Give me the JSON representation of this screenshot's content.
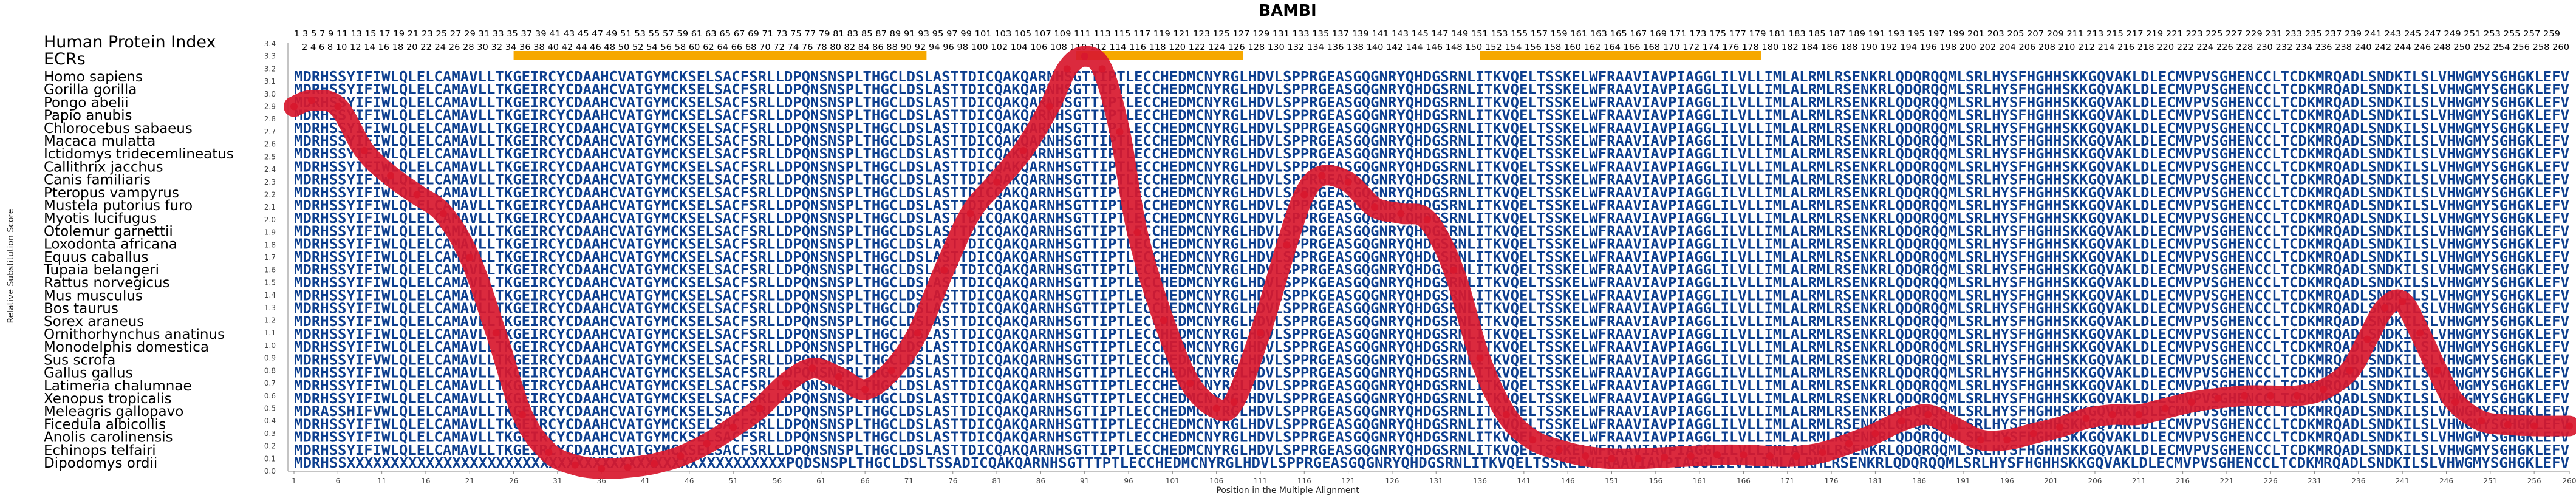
{
  "chart_data": {
    "type": "line",
    "title": "BAMBI",
    "ylabel": "Relative Substitution Score",
    "xlabel": "Position in the Multiple Alignment",
    "xlim": [
      1,
      260
    ],
    "ylim": [
      0,
      3.4
    ],
    "yticks": [
      "0.0",
      "0.1",
      "0.2",
      "0.3",
      "0.4",
      "0.5",
      "0.6",
      "0.7",
      "0.8",
      "0.9",
      "1.0",
      "1.1",
      "1.2",
      "1.3",
      "1.4",
      "1.5",
      "1.6",
      "1.7",
      "1.8",
      "1.9",
      "2.0",
      "2.1",
      "2.2",
      "2.3",
      "2.4",
      "2.5",
      "2.6",
      "2.7",
      "2.8",
      "2.9",
      "3.0",
      "3.1",
      "3.2",
      "3.3",
      "3.4"
    ],
    "xticks": [
      1,
      6,
      11,
      16,
      21,
      26,
      31,
      36,
      41,
      46,
      51,
      56,
      61,
      66,
      71,
      76,
      81,
      86,
      91,
      96,
      101,
      106,
      111,
      116,
      121,
      126,
      131,
      136,
      141,
      146,
      151,
      156,
      161,
      166,
      171,
      176,
      181,
      186,
      191,
      196,
      201,
      206,
      211,
      216,
      221,
      226,
      231,
      236,
      241,
      246,
      251,
      256,
      260
    ],
    "header_label": "Human Protein Index",
    "ecr_label": "ECRs",
    "ecr_regions": [
      [
        26,
        73
      ],
      [
        90,
        109
      ],
      [
        136,
        168
      ]
    ],
    "index_odd": "1 3 5 7 9 11 13 15 17 19 21 23 25 27 29 31 33 35 37 39 41 43 45 47 49 51 53 55 57 59 61 63 65 67 69 71 73 75 77 79 81 83 85 87 89 91 93 95 97 99 101 103 105 107 109 111 113 115 117 119 121 123 125 127 129 131 133 135 137 139 141 143 145 147 149 151 153 155 157 159 161 163 165 167 169 171 173 175 177 179 181 183 185 187 189 191 193 195 197 199 201 203 205 207 209 211 213 215 217 219 221 223 225 227 229 231 233 235 237 239 241 243 245 247 249 251 253 255 257 259",
    "index_even": "2 4 6 8 10 12 14 16 18 20 22 24 26 28 30 32 34 36 38 40 42 44 46 48 50 52 54 56 58 60 62 64 66 68 70 72 74 76 78 80 82 84 86 88 90 92 94 96 98 100 102 104 106 108 110 112 114 116 118 120 122 124 126 128 130 132 134 136 138 140 142 144 146 148 150 152 154 156 158 160 162 164 166 168 170 172 174 176 178 180 182 184 186 188 190 192 194 196 198 200 202 204 206 208 210 212 214 216 218 220 222 224 226 228 230 232 234 236 238 240 242 244 246 248 250 252 254 256 258 260",
    "species": [
      {
        "name": "Homo sapiens",
        "seq": "MDRHSSYIFIWLQLELCAMAVLLTKGEIRCYCDAAHCVATGYMCKSELSACFSRLLDPQNSNSPLTHGCLDSLASTTDICQAKQARNHSGTTIPTLECCHEDMCNYRGLHDVLSPPRGEASGQGNRYQHDGSRNLITKVQELTSSKELWFRAAVIAVPIAGGLILVLLIMLALRMLRSENKRLQDQRQQMLSRLHYSFHGHHSKKGQVAKLDLECMVPVSGHENCCLTCDKMRQADLSNDKILSLVHWGMYSGHGKLEFV"
      },
      {
        "name": "Gorilla gorilla",
        "seq": "MDRHSSYIFIWLQLELCAMAVLLTKGEIRCYCDAAHCVATGYMCKSELSACFSRLLDPQNSNSPLTHGCLDSLASTTDICQAKQARNHSGTTIPTLECCHEDMCNYRGLHDVLSPPRGEASGQGNRYQHDGSRNLITKVQELTSSKELWFRAAVIAVPIAGGLILVLLIMLALRMLRSENKRLQDQRQQMLSRLHYSFHGHHSKKGQVAKLDLECMVPVSGHENCCLTCDKMRQADLSNDKILSLVHWGMYSGHGKLEFV"
      },
      {
        "name": "Pongo abelii",
        "seq": "MDRHSSYIFIWLQLELCAMAVLLTKGEIRCYCDAAHCVATGYMCKSELSACFSRLLDPQNSNSPLTHGCLDSLASTTDICQAKQARNHSGTTIPTLECCHEDMCNYRGLHDVLSPPRGEASGQGNRYQHDGSRNLITKVQELTSSKELWFRAAVIAVPIAGGLILVLLIMLALRMLRSENKRLQDQRQQMLSRLHYSFHGHHSKKGQVAKLDLECMVPVSGHENCCLTCDKMRQADLSNDKILSLVHWGMYSGHGKLEFV"
      },
      {
        "name": "Papio anubis",
        "seq": "MDRHSSYIFIWLQLELCAMAVLLTKGEIRCYCDAAHCVATGYMCKSELSACFSRLLDPQNSNSPLTHGCLDSLASTTDICQAKQARNHSGTTIPTLECCHEDMCNYRGLHDVLSPPRGEASGQGNRYQHDGSRNLITKVQELTSSKELWFRAAVIAVPIAGGLILVLLIMLALRMLRSENKRLQDQRQQMLSRLHYSFHGHHSKKGQVAKLDLECMVPVSGHENCCLTCDKMRQADLSNDKILSLVHWGMYSGHGKLEFV"
      },
      {
        "name": "Chlorocebus sabaeus",
        "seq": "MDRHSSYIFIWLQLELCAMAVLLTKGEIRCYCDAAHCVATGYMCKSELSACFSRLLDPQNSNSPLTHGCLDSLASTTDICQAKQARNHSGTTIPTLECCHEDMCNYRGLHDVLSPPRGEASGQGNRYQHDGSRNLITKVQELTSSKELWFRAAVIAVPIAGGLILVLLIMLALRMLRSENKRLQDQRQQMLSRLHYSFHGHHSKKGQVAKLDLECMVPVSGHENCCLTCDKMRQADLSNDKILSLVHWGMYSGHGKLEFV"
      },
      {
        "name": "Macaca mulatta",
        "seq": "MDRHSSYIFIWLQLELCAMAVLLTKGEIRCYCDAAHCVATGYMCKSELSACFSRLLDPQNSNSPLTHGCLDSLASTTDICQAKQARNHSGTTIPTLECCHEDMCNYRGLHDVLSPPRGEASGQGNRYQHDGSRNLITKVQELTSSKELWFRAAVIAVPIAGGLILVLLIMLALRMLRSENKRLQDQRQQMLSRLHYSFHGHHSKKGQVAKLDLECMVPVSGHENCCLTCDKMRQADLSNDKILSLVHWGMYSGHGKLEFV"
      },
      {
        "name": "Ictidomys tridecemlineatus",
        "seq": "MDRHSSYIFIWLQLELCAMAVLLTKGEIRCYCDAAHCVATGYMCKSELSACFSRLLDPQNSNSPLTHGCLDSLASTTDICQAKQARNHSGTTIPTLECCHEDMCNYRGLHDVLSPPRGEASGQGNRYQHDGSRNLITKVQELTSSKELWFRAAVIAVPIAGGLILVLLIMLALRMLRSENKRLQDQRQQMLSRLHYSFHGHHSKKGQVAKLDLECMVPVSGHENCCLTCDKMRQADLSNDKILSLVHWGMYSGHGKLEFV"
      },
      {
        "name": "Callithrix jacchus",
        "seq": "MDRHSSYIFIWLQLELCAMAVLLTKGEIRCYCDAAHCVATGYMCKSELSACFSRLLDPQNSNSPLTHGCLDSLASTTDICQAKQARNHSGTTIPTLECCHEDMCNYRGLHDVLSPPRGEASGQGNRYQHDGSRNLITKVQELTSSKELWFRAAVIAVPIAGGLILVLLIMLALRMLRSENKRLQDQRQQMLSRLHYSFHGHHSKKGQVAKLDLECMVPVSGHENCCLTCDKMRQADLSNDKILSLVHWGMYSGHGKLEFV"
      },
      {
        "name": "Canis familiaris",
        "seq": "MDRHSSYIFIWLQLELCAMAVLLTKGEIRCYCDAAHCVATGYMCKSELSACFSRLLDPQNSNSPLTHGCLDSLASTTDICQAKQARNHSGTTIPTLECCHEDMCNYRGLHDVLSPPRGEASGQGNRYQHDGSRNLITKVQELTSSKELWFRAAVIAVPIAGGLILVLLIMLALRMLRSENKRLQDQRQQMLSRLHYSFHGHHSKKGQVAKLDLECMVPVSGHENCCLTCDKMRQADLSNDKILSLVHWGMYSGHGKLEFV"
      },
      {
        "name": "Pteropus vampyrus",
        "seq": "MDRHSSYIFIWLQLELCAMAVLLTKGEIRCYCDAAHCVATGYMCKSELSACFSRLLDPQNSNSPLTHGCLDSLASTTDICQAKQARNHSGTTIPTLECCHEDMCNYRGLHDVLSPPRGEASGQGNRYQHDGSRNLITKVQELTSSKELWFRAAVIAVPIAGGLILVLLIMLALRMLRSENKRLQDQRQQMLSRLHYSFHGHHSKKGQVAKLDLECMVPVSGHENCCLTCDKMRQADLSNDKILSLVHWGMYSGHGKLEFV"
      },
      {
        "name": "Mustela putorius furo",
        "seq": "MDRHSSYIFIWLQLELCAMAVLLTKGEIRCYCDAAHCVATGYMCKSELSACFSRLLDPQNSNSPLTHGCLDSLASTTDICQAKQARNHSGTTIPTLECCHEDMCNYRGLHDVLSPPRGEASGQGNRYQHDGSRNLITKVQELTSSKELWFRAAVIAVPIAGGLILVLLIMLALRMLRSENKRLQDQRQQMLSRLHYSFHGHHSKKGQVAKLDLECMVPVSGHENCCLTCDKMRQADLSNDKILSLVHWGMYSGHGKLEFV"
      },
      {
        "name": "Myotis lucifugus",
        "seq": "MDRHSSYIFIWLQLELCAMAVLLTKGEIRCYCDAAHCVATGYMCKSELSACFSRLLDPQNSNSPLTHGCLDSLASTTDICQAKQARNHSGTTIPTLECCHEDMCNYRGLHDVLSPPRGEASGQGNRYQHDGSRNLITKVQELTSSKELWFRAAVIAVPIAGGLILVLLIMLALRMLRSENKRLQDQRQQMLSRLHYSFHGHHSKKGQVAKLDLECMVPVSGHENCCLTCDKMRQADLSNDKILSLVHWGMYSGHGKLEFV"
      },
      {
        "name": "Otolemur garnettii",
        "seq": "MDRHSSYIFIWLQLELCAMAVLLTKGEIRCYCDAAHCVATGYMCKSELSACFSRLLDPQNSNSPLTHGCLDSLASTTDICQAKQARNHSGTTIPTLECCHEDMCNYRGLHDVLSPPRGEASGQGNRYQHDGSRNLITKVQELTSSKELWFRAAVIAVPIAGGLILVLLIMLALRMLRSENKRLQDQRQQMLSRLHYSFHGHHSKKGQVAKLDLECMVPVSGHENCCLTCDKMRQADLSNDKILSLVHWGMYSGHGKLEFV"
      },
      {
        "name": "Loxodonta africana",
        "seq": "MDRHSSYIFIWLQLELCAMAVLLTKGEIRCYCDAAHCVATGYMCKSELSACFSRLLDPQNSNSPLTHGCLDSLASTTDICQAKQARNHSGTTIPTLECCHEDMCNYRGLHDVLSPPRGEASGQGNRYQHDGSRNLITKVQELTSSKELWFRAAVIAVPIAGGLILVLLIMLALRMLRSENKRLQDQRQQMLSRLHYSFHGHHSKKGQVAKLDLECMVPVSGHENCCLTCDKMRQADLSNDKILSLVHWGMYSGHGKLEFV"
      },
      {
        "name": "Equus caballus",
        "seq": "MDRHSSYIFIWLQLELCAMAVLLTKGEIRCYCDAAHCVATGYMCKSELSACFSRLLDPQNSNSPLTHGCLDSLASTTDICQAKQARNHSGTTIPTLECCHEDMCNYRGLHDVLSPPRGEASGQGNRYQHDGSRNLITKVQELTSSKELWFRAAVIAVPIAGGLILVLLIMLALRMLRSENKRLQDQRQQMLSRLHYSFHGHHSKKGQVAKLDLECMVPVSGHENCCLTCDKMRQADLSNDKILSLVHWGMYSGHGKLEFV"
      },
      {
        "name": "Tupaia belangeri",
        "seq": "MDRHSSYIFIWLQLELCAMAVLLTKGEIRCYCDAAHCVATGYMCKSELSACFSRLLDPQNSNSPLTHGCLDSLASTTDICQAKQARNHSGTTIPTLECCHEDMCNYRGLHDVLSPPRGEASGQGNRYQHDGSRNLITKVQELTSSKELWFRAAVIAVPIAGGLILVLLIMLALRMLRSENKRLQDQRQQMLSRLHYSFHGHHSKKGQVAKLDLECMVPVSGHENCCLTCDKMRQADLSNDKILSLVHWGMYSGHGKLEFV"
      },
      {
        "name": "Rattus norvegicus",
        "seq": "MDRHSSYIFIWLQLELCAMAVLLTKGEIRCYCDAAHCVATGYMCKSELSACFSRLLDPQNSNSPLTHGCLDSLASTTDICQAKQARNHSGTTIPTLECCHEDMCNYRGLHDVLSPPKGEASGQGNRYQHDGSRNLITKVQELTSSKELWFRAAVIAVPIAGGLILVLLIMLALRMLRSENKRLQDQRQQMLSRLHYSFHGHHSKKGQVAKLDLECMVPVSGHENCCLTCDKMRQADLSNDKILSLVHWGMYSGHGKLEFV"
      },
      {
        "name": "Mus musculus",
        "seq": "MDRHSSYIFIWLQLELCAMAVLLTKGEIRCYCDAAHCVATGYMCKSELSACFSRLLDPQNSNSPLTHGCLDSLASTTDICQAKQARNHSGTTIPTLECCHEDMCNYRGLHDVLSPPKGEASGQGNRYQHDGSRNLITKVQELTSSKELWFRAAVIAVPIAGGLILVLLIMLALRMLRSENKRLQDQRQQMLSRLHYSFHGHHSKKGQVAKLDLECMVPVSGHENCCLTCDKMRQADLSNDKILSLVHWGMYSGHGKLEFV"
      },
      {
        "name": "Bos taurus",
        "seq": "MDRHSSYIFIWLQLELCAMAVLLTKGEIRCYCDAAHCVATGYMCKSELSACFSRLLDPQNSNSPLTHGCLDSLASTTDICQAKQARNHSGTTIPTLECCHEDMCNYRGLHDVLSPPRGEASGQGNRYQHDGSRNLITKVQELTSSKELWFRAAVIAVPIAGGLILVLLIMLALRMLRSENKRLQDQRQQMLSRLHYSFHGHHSKKGQVAKLDLECMVPVSGHENCCLTCDKMRQADLSNDKILSLVHWGMYSGHGKLEFV"
      },
      {
        "name": "Sorex araneus",
        "seq": "MDRHSSYIFIWLQLELCAMAVLLTKGEIRCYCDAAHCVATGYMCKSELSACFSRLLDPQNSNSPLTHGCLDSLASTTDICQAKQARNHSGTTIPTLECCHEDMCNYRGLHDVLSPPRGEASGQGNRYQHDGSRNLITKVQELTSSKELWFRAAVIAVPIAGGLILVLLIMLALRMLRSENKRLQDQRQQMLSRLHYSFHGHHSKKGQVAKLDLECMVPVSGHENCCLTCDKMRQADLSNDKILSLVHWGMYSGHGKLEFV"
      },
      {
        "name": "Ornithorhynchus anatinus",
        "seq": "MDRHSSYIFIWLQLELCAMAVLLTKGEIRCYCDAAHCVATGYMCKSELSACFSRLLDPQNSNSPLTHGCLDSLASTTDICQAKQARNHSGTTIPTLECCHEDMCNYRGLHDVLSPPRGEASGQGNRYQHDGSRNLITKVQELTSSKELWFRAAVIAVPIAGGLILVLLIMLALRMLRSENKRLQDQRQQMLSRLHYSFHGHHSKKGQVAKLDLECMVPVSGHENCCLTCDKMRQADLSNDKILSLVHWGMYSGHGKLEFV"
      },
      {
        "name": "Monodelphis domestica",
        "seq": "MDRHSSYIFIWLQLELCAMAVLLTKGEIRCYCDAAHCVATGYMCKSELSACFSRLLDPQNSNSPLTHGCLDSLASTTDICQAKQARNHSGTTIPTLECCHEDMCNYRGLHDVLSPPRGEASGQGNRYQHDGSRNLITKVQELTSSKELWFRAAVIAVPIAGGLILVLLIMLALRMLRSENKRLQDQRQQMLSRLHYSFHGHHSKKGQVAKLDLECMVPVSGHENCCLTCDKMRQADLSNDKILSLVHWGMYSGHGKLEFV"
      },
      {
        "name": "Sus scrofa",
        "seq": "MDRHSSYIFVWLQLELCAMAVLLTKGEIRCYCDAAHCVATGYMCKSELSACFSRLLDPQNSNSPLTHGCLDSLASTTDICQAKQARNHSGTTIPTLECCHEDMCNYRGLHDVLSPPRGEASGQGNRYQHDGSRNLITKVQELTSSKELWFRAAVIAVPIAGGLILVLLIMLALRMLRSENKRLQDQRQQMLSRLHYSFHGHHSKKGQVAKLDLECMVPVSGHENCCLTCDKMRQADLSNDKILSLVHWGMYSGHGKLEFV"
      },
      {
        "name": "Gallus gallus",
        "seq": "MDRHSSYIFIWLQLELCAMAVLLTKGEIRCYCDAAHCVATGYMCKSELSACFSRLLDPQNSNSPLTHGCLDSLASTTDICQAKQARNHSGTTIPTLECCHEDMCNYRGLHDVLSPPRGEASGQGNRYQHDGSRNLITKVQELTSSKELWFRAAVIAVPIAGGLILVLLIMLALRMLRSENKRLQDQRQQMLSRLHYSFHGHHSKKGQVAKLDLECMVPVSGHENCCLTCDKMRQADLSNDKILSLVHWGMYSGHGKLEFV"
      },
      {
        "name": "Latimeria chalumnae",
        "seq": "MDRHSSYIFIWLQLELCAMAVLLTKGEIRCYCDAAHCVATGYMCKSELSACFSRLLDPQNSNSPLTHGCLDSLASTTDICQAKQARNHSGTTIPTLECCHEDMCNYRGLHDVLSPPRGEASGQGNRYQHDGSRNLITKVQELTSSKELWFRAAVIAVPIAGGLILVLLIMLALRMLRSENKRLQDQRQQMLSRLHYSFHGHHSKKGQVAKLDLECMVPVSGHENCCLTCDKMRQADLSNDKILSLVHWGMYSGHGKLEFV"
      },
      {
        "name": "Xenopus tropicalis",
        "seq": "MDRHSSYIFIWLQLELCAMAVLLTKGEIRCYCDAAHCVATGYMCKSELSACFSRLLDPQNSNSPLTHGCLDSLASTTDICQAKQARNHSGTTIPTLECCHEDMCNYRGLHDVLSPPRGEASGQGNRYQHDGSRNLITKVQELTSSKELWFRAAVIAVPIAGGLILVLLIMLALRMLRSENKRLQDQRQQMLSRLHYSFHGHHSKKGQVAKLDLECMVPVSGHENCCLTCDKMRQADLSNDKILSLVHWGMYSGHGKLEFV"
      },
      {
        "name": "Meleagris gallopavo",
        "seq": "MDRASSHIFVWLQLELCAMAVLLTKGEIRCYCDAAHCVATGYMCKSELSACFSRLLDPQNSNSPLTHGCLDSLASTTDICQAKQARNHSGTTIPTLECCHEDMCNYRGLHDVLSPPRGEASGQGNRYQHDGSRNLITKVQELTSSKELWFRAAVIAVPIAGGLILVLLIMLALRMLRSENKRLQDQRQQMLSRLHYSFHGHHSKKGQVAKLDLECMVPVSGHENCCLTCDKMRQADLSNDKILSLVHWGMYSGHGKLEFV"
      },
      {
        "name": "Ficedula albicollis",
        "seq": "MDRHSSYIFIWLQLELCAMAVLLTKGEIRCYCDAAHCVATGYMCKSELSACFSRLLDPQNSNSPLTHGCLDSLASTTDICQAKQARNHSGTTIPTLECCHEDMCNYRGLHDVLSPPRGEASGQGNRYQHDGSRNLITKVQELTSSKELWFRAAVIAVPIAGGLILVLLIMLALRMLRSENKRLQDQRQQMLSRLHYSFHGHHSKKGQVAKLDLECMVPVSGHENCCLTCDKMRQADLSNDKILSLVHWGMYSGHGKLEFV"
      },
      {
        "name": "Anolis carolinensis",
        "seq": "MDRHSSYIFIWLQLELCAMAVLLTKGEIRCYCDAAHCVATGYMCKSELSACFSRLLDPQNSNSPLTHGCLDSLASTTDICQAKQARNHSGTTIPTLECCHEDMCNYRGLHDVLSPPRGEASGQGNRYQHDGSRNLITKVQELTSSKELWFRAAVIAVPIAGGLILVLLIMLALRMLRSENKRLQDQRQQMLSRLHYSFHGHHSKKGQVAKLDLECMVPVSGHENCCLTCDKMRQADLSNDKILSLVHWGMYSGHGKLEFV"
      },
      {
        "name": "Echinops telfairi",
        "seq": "MDRHSSYIFIWLQLELCAMAVLLTKGEIRCYCDAAHCVATGYMCKSELSACFSRLLDPQNSNSPLTHGCLDSLASTTDICQAKQARNHSGTTIPTLECCHEDMCNYRGLHDVLSPPRGEASGQGNRYQHDGSRNLITKVQELTSSKELWFRAAVIAVPIAGGLILVLLIMLALRMLRSENKRLQDQRQQMLSRLHYSFHGHHSKKGQVAKLDLECMVPVSGHENCCLTCDKMRQADLSNDKILSLVHWGMYSGHGKLEFV"
      },
      {
        "name": "Dipodomys ordii",
        "seq": "MDRHSSXXXXXXXXXXXXXXXXXXXXXXXXXXXXXXXXXXXXXXXXXXXXXXXXXXPQDSNSPLTHGCLDSLTSSADICQAKQARNHSGTTTPTLECCHEDMCNYRGLHDVLSPPRGEASGQGNRYQHDGSRNLITKVQELTSSKELWFRAAVIAVPIAGGLILVLLIMLALRMLRSENKRLQDQRQQMLSRLHYSFHGHHSKKGQVAKLDLECMVPVSGHENCCLTCDKMRQADLSNDKILSLVHWGMYSGHGKLEFV"
      }
    ],
    "series": [
      {
        "x": [
          1,
          3,
          6,
          9,
          12,
          15,
          18,
          21,
          24,
          27,
          30,
          33,
          36,
          39,
          42,
          45,
          48,
          51,
          54,
          57,
          60,
          63,
          66,
          69,
          72,
          75,
          78,
          81,
          84,
          87,
          89,
          91,
          93,
          95,
          97,
          100,
          103,
          106,
          108,
          111,
          114,
          116,
          118,
          121,
          124,
          127,
          130,
          133,
          136,
          139,
          142,
          145,
          148,
          151,
          154,
          157,
          160,
          163,
          166,
          169,
          172,
          175,
          178,
          181,
          184,
          187,
          190,
          193,
          196,
          199,
          202,
          205,
          208,
          211,
          214,
          217,
          220,
          223,
          226,
          229,
          232,
          235,
          237,
          239,
          241,
          243,
          245,
          247,
          250,
          253,
          256,
          260
        ],
        "values": [
          2.9,
          2.95,
          2.9,
          2.55,
          2.35,
          2.2,
          2.05,
          1.7,
          1.1,
          0.45,
          0.15,
          0.05,
          0.02,
          0.03,
          0.06,
          0.12,
          0.22,
          0.35,
          0.5,
          0.7,
          0.82,
          0.75,
          0.65,
          0.8,
          1.1,
          1.6,
          2.05,
          2.3,
          2.55,
          2.9,
          3.2,
          3.3,
          3.2,
          2.7,
          1.9,
          1.2,
          0.7,
          0.5,
          0.55,
          1.1,
          1.8,
          2.2,
          2.35,
          2.3,
          2.1,
          2.05,
          2.0,
          1.6,
          0.9,
          0.45,
          0.25,
          0.17,
          0.12,
          0.1,
          0.1,
          0.11,
          0.12,
          0.13,
          0.13,
          0.12,
          0.12,
          0.15,
          0.22,
          0.3,
          0.4,
          0.45,
          0.35,
          0.25,
          0.25,
          0.3,
          0.35,
          0.42,
          0.45,
          0.45,
          0.5,
          0.55,
          0.58,
          0.6,
          0.6,
          0.6,
          0.65,
          0.8,
          1.05,
          1.3,
          1.35,
          1.1,
          0.8,
          0.55,
          0.4,
          0.37,
          0.36,
          0.36
        ]
      }
    ]
  }
}
